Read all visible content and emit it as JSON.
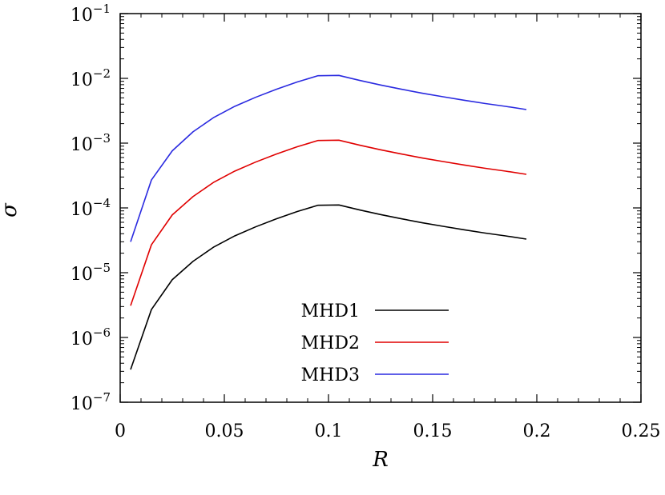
{
  "chart_data": {
    "type": "line",
    "title": "",
    "xlabel": "R",
    "ylabel": "σ",
    "xlim": [
      0,
      0.25
    ],
    "ylim": [
      1e-07,
      0.1
    ],
    "yscale": "log",
    "grid": false,
    "legend_position": "bottom-center",
    "x_ticks": [
      {
        "value": 0,
        "label": "0"
      },
      {
        "value": 0.05,
        "label": "0.05"
      },
      {
        "value": 0.1,
        "label": "0.1"
      },
      {
        "value": 0.15,
        "label": "0.15"
      },
      {
        "value": 0.2,
        "label": "0.2"
      },
      {
        "value": 0.25,
        "label": "0.25"
      }
    ],
    "y_ticks": [
      {
        "value": 1e-07,
        "base": "10",
        "exponent": "−7"
      },
      {
        "value": 1e-06,
        "base": "10",
        "exponent": "−6"
      },
      {
        "value": 1e-05,
        "base": "10",
        "exponent": "−5"
      },
      {
        "value": 0.0001,
        "base": "10",
        "exponent": "−4"
      },
      {
        "value": 0.001,
        "base": "10",
        "exponent": "−3"
      },
      {
        "value": 0.01,
        "base": "10",
        "exponent": "−2"
      },
      {
        "value": 0.1,
        "base": "10",
        "exponent": "−1"
      }
    ],
    "x": [
      0.005,
      0.015,
      0.025,
      0.035,
      0.045,
      0.055,
      0.065,
      0.075,
      0.085,
      0.095,
      0.105,
      0.115,
      0.125,
      0.135,
      0.145,
      0.155,
      0.165,
      0.175,
      0.185,
      0.195
    ],
    "series": [
      {
        "name": "MHD1",
        "color": "#000000",
        "values": [
          3.2e-07,
          2.7e-06,
          7.8e-06,
          1.5e-05,
          2.5e-05,
          3.7e-05,
          5.1e-05,
          6.8e-05,
          8.8e-05,
          0.00011,
          0.000111,
          9.3e-05,
          7.9e-05,
          6.8e-05,
          5.9e-05,
          5.2e-05,
          4.6e-05,
          4.1e-05,
          3.7e-05,
          3.3e-05
        ]
      },
      {
        "name": "MHD2",
        "color": "#e00000",
        "values": [
          3.1e-06,
          2.7e-05,
          7.8e-05,
          0.00015,
          0.00025,
          0.00037,
          0.00051,
          0.00068,
          0.00088,
          0.0011,
          0.00111,
          0.00093,
          0.00079,
          0.00068,
          0.00059,
          0.00052,
          0.00046,
          0.00041,
          0.00037,
          0.00033
        ]
      },
      {
        "name": "MHD3",
        "color": "#2a2ae0",
        "values": [
          3e-05,
          0.00027,
          0.00076,
          0.0015,
          0.0025,
          0.0037,
          0.0051,
          0.0068,
          0.0088,
          0.011,
          0.0111,
          0.0093,
          0.0079,
          0.0068,
          0.0059,
          0.0052,
          0.0046,
          0.0041,
          0.0037,
          0.0033
        ]
      }
    ]
  }
}
